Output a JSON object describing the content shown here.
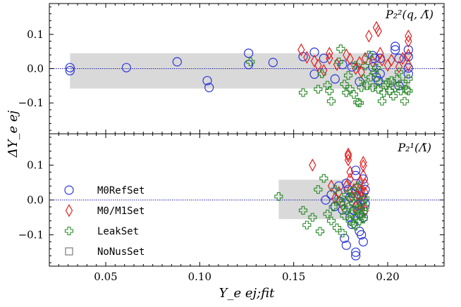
{
  "chart_data": [
    {
      "type": "scatter",
      "title": "P₂²(q, Λ̃)",
      "xlabel": "Y_e ej;fit",
      "ylabel": "ΔY_e ej",
      "xlim": [
        0.02,
        0.23
      ],
      "ylim": [
        -0.19,
        0.19
      ],
      "xticks": [
        "0.05",
        "0.10",
        "0.15",
        "0.20"
      ],
      "yticks": [
        "−0.1",
        "0.0",
        "0.1"
      ],
      "band": {
        "x": [
          0.031,
          0.212
        ],
        "y": [
          -0.058,
          0.045
        ]
      },
      "reference_line_y": 0.0,
      "series": [
        {
          "name": "M0RefSet",
          "marker": "circle",
          "color": "#2b35d9",
          "points": [
            [
              0.031,
              0.003
            ],
            [
              0.031,
              -0.006
            ],
            [
              0.061,
              0.003
            ],
            [
              0.088,
              0.02
            ],
            [
              0.104,
              -0.035
            ],
            [
              0.105,
              -0.055
            ],
            [
              0.126,
              0.045
            ],
            [
              0.126,
              0.012
            ],
            [
              0.139,
              0.018
            ],
            [
              0.155,
              0.035
            ],
            [
              0.161,
              0.048
            ],
            [
              0.161,
              -0.016
            ],
            [
              0.166,
              0.03
            ],
            [
              0.172,
              -0.03
            ],
            [
              0.176,
              0.012
            ],
            [
              0.181,
              0.005
            ],
            [
              0.185,
              -0.038
            ],
            [
              0.192,
              0.005
            ],
            [
              0.192,
              0.038
            ],
            [
              0.193,
              0.03
            ],
            [
              0.194,
              -0.025
            ],
            [
              0.195,
              -0.035
            ],
            [
              0.196,
              0.03
            ],
            [
              0.196,
              -0.015
            ],
            [
              0.204,
              0.065
            ],
            [
              0.204,
              0.055
            ],
            [
              0.206,
              0.03
            ],
            [
              0.206,
              -0.05
            ],
            [
              0.211,
              0.055
            ],
            [
              0.211,
              0.035
            ],
            [
              0.211,
              0.002
            ],
            [
              0.211,
              -0.015
            ]
          ]
        },
        {
          "name": "M0/M1Set",
          "marker": "diamond",
          "color": "#e02020",
          "points": [
            [
              0.154,
              0.055
            ],
            [
              0.157,
              0.033
            ],
            [
              0.161,
              0.022
            ],
            [
              0.163,
              0.01
            ],
            [
              0.166,
              -0.005
            ],
            [
              0.169,
              0.045
            ],
            [
              0.169,
              0.03
            ],
            [
              0.173,
              0.012
            ],
            [
              0.178,
              0.04
            ],
            [
              0.18,
              0.028
            ],
            [
              0.183,
              0.0
            ],
            [
              0.185,
              0.018
            ],
            [
              0.186,
              -0.01
            ],
            [
              0.188,
              0.03
            ],
            [
              0.19,
              0.095
            ],
            [
              0.192,
              0.02
            ],
            [
              0.194,
              0.12
            ],
            [
              0.195,
              0.11
            ],
            [
              0.196,
              0.045
            ],
            [
              0.197,
              0.025
            ],
            [
              0.2,
              0.01
            ],
            [
              0.202,
              0.025
            ],
            [
              0.206,
              0.005
            ],
            [
              0.208,
              0.03
            ],
            [
              0.211,
              0.095
            ],
            [
              0.211,
              0.08
            ],
            [
              0.211,
              0.04
            ],
            [
              0.211,
              0.01
            ]
          ]
        },
        {
          "name": "LeakSet",
          "marker": "plus",
          "color": "#2a8a2a",
          "points": [
            [
              0.127,
              0.02
            ],
            [
              0.155,
              -0.07
            ],
            [
              0.163,
              -0.06
            ],
            [
              0.165,
              -0.015
            ],
            [
              0.168,
              -0.048
            ],
            [
              0.169,
              -0.065
            ],
            [
              0.17,
              -0.095
            ],
            [
              0.174,
              0.02
            ],
            [
              0.175,
              0.058
            ],
            [
              0.177,
              -0.045
            ],
            [
              0.178,
              -0.07
            ],
            [
              0.179,
              -0.02
            ],
            [
              0.18,
              -0.06
            ],
            [
              0.182,
              -0.075
            ],
            [
              0.183,
              0.01
            ],
            [
              0.184,
              -0.098
            ],
            [
              0.185,
              -0.1
            ],
            [
              0.186,
              -0.055
            ],
            [
              0.187,
              -0.03
            ],
            [
              0.188,
              0.008
            ],
            [
              0.189,
              -0.05
            ],
            [
              0.19,
              0.04
            ],
            [
              0.191,
              -0.025
            ],
            [
              0.192,
              -0.055
            ],
            [
              0.193,
              -0.012
            ],
            [
              0.194,
              0.002
            ],
            [
              0.195,
              -0.06
            ],
            [
              0.196,
              -0.04
            ],
            [
              0.197,
              -0.095
            ],
            [
              0.198,
              -0.07
            ],
            [
              0.199,
              -0.048
            ],
            [
              0.2,
              -0.04
            ],
            [
              0.201,
              -0.065
            ],
            [
              0.202,
              -0.035
            ],
            [
              0.203,
              -0.08
            ],
            [
              0.204,
              -0.055
            ],
            [
              0.205,
              -0.03
            ],
            [
              0.206,
              -0.01
            ],
            [
              0.207,
              -0.065
            ],
            [
              0.208,
              -0.045
            ],
            [
              0.209,
              -0.095
            ],
            [
              0.21,
              -0.062
            ],
            [
              0.211,
              -0.065
            ],
            [
              0.211,
              -0.03
            ]
          ]
        }
      ]
    },
    {
      "type": "scatter",
      "title": "P₂¹(Λ̃)",
      "xlabel": "Y_e ej;fit",
      "ylabel": "ΔY_e ej",
      "xlim": [
        0.02,
        0.23
      ],
      "ylim": [
        -0.19,
        0.19
      ],
      "xticks": [
        "0.05",
        "0.10",
        "0.15",
        "0.20"
      ],
      "yticks": [
        "−0.1",
        "0.0",
        "0.1"
      ],
      "band": {
        "x": [
          0.142,
          0.188
        ],
        "y": [
          -0.055,
          0.058
        ]
      },
      "reference_line_y": 0.0,
      "series": [
        {
          "name": "M0RefSet",
          "marker": "circle",
          "color": "#2b35d9",
          "points": [
            [
              0.167,
              0.0
            ],
            [
              0.17,
              0.015
            ],
            [
              0.172,
              -0.018
            ],
            [
              0.174,
              0.04
            ],
            [
              0.175,
              -0.005
            ],
            [
              0.176,
              -0.028
            ],
            [
              0.177,
              -0.11
            ],
            [
              0.178,
              -0.13
            ],
            [
              0.178,
              0.048
            ],
            [
              0.179,
              0.03
            ],
            [
              0.18,
              0.008
            ],
            [
              0.18,
              -0.05
            ],
            [
              0.181,
              -0.07
            ],
            [
              0.181,
              0.02
            ],
            [
              0.182,
              -0.03
            ],
            [
              0.183,
              0.085
            ],
            [
              0.183,
              0.07
            ],
            [
              0.183,
              -0.15
            ],
            [
              0.183,
              -0.16
            ],
            [
              0.184,
              0.035
            ],
            [
              0.184,
              -0.015
            ],
            [
              0.185,
              -0.04
            ],
            [
              0.185,
              -0.09
            ],
            [
              0.186,
              -0.1
            ],
            [
              0.186,
              0.01
            ],
            [
              0.187,
              -0.12
            ],
            [
              0.187,
              0.06
            ],
            [
              0.187,
              0.0
            ],
            [
              0.187,
              -0.05
            ],
            [
              0.188,
              0.03
            ],
            [
              0.188,
              -0.01
            ]
          ]
        },
        {
          "name": "M0/M1Set",
          "marker": "diamond",
          "color": "#e02020",
          "points": [
            [
              0.16,
              0.1
            ],
            [
              0.17,
              0.04
            ],
            [
              0.172,
              0.005
            ],
            [
              0.174,
              0.022
            ],
            [
              0.176,
              -0.015
            ],
            [
              0.178,
              0.04
            ],
            [
              0.179,
              0.132
            ],
            [
              0.179,
              0.126
            ],
            [
              0.179,
              0.115
            ],
            [
              0.18,
              0.08
            ],
            [
              0.18,
              0.06
            ],
            [
              0.181,
              0.01
            ],
            [
              0.182,
              0.03
            ],
            [
              0.183,
              -0.02
            ],
            [
              0.184,
              0.015
            ],
            [
              0.185,
              0.05
            ],
            [
              0.185,
              0.03
            ],
            [
              0.186,
              0.025
            ],
            [
              0.186,
              -0.01
            ],
            [
              0.187,
              0.108
            ],
            [
              0.187,
              0.098
            ],
            [
              0.187,
              0.07
            ],
            [
              0.188,
              0.045
            ],
            [
              0.188,
              0.02
            ],
            [
              0.188,
              -0.03
            ]
          ]
        },
        {
          "name": "LeakSet",
          "marker": "plus",
          "color": "#2a8a2a",
          "points": [
            [
              0.142,
              0.01
            ],
            [
              0.155,
              -0.03
            ],
            [
              0.157,
              -0.072
            ],
            [
              0.16,
              -0.05
            ],
            [
              0.163,
              0.03
            ],
            [
              0.164,
              -0.09
            ],
            [
              0.166,
              0.062
            ],
            [
              0.168,
              -0.04
            ],
            [
              0.17,
              -0.06
            ],
            [
              0.171,
              -0.02
            ],
            [
              0.172,
              0.03
            ],
            [
              0.173,
              -0.08
            ],
            [
              0.174,
              0.0
            ],
            [
              0.175,
              -0.01
            ],
            [
              0.176,
              -0.095
            ],
            [
              0.177,
              -0.045
            ],
            [
              0.178,
              -0.03
            ],
            [
              0.178,
              0.015
            ],
            [
              0.179,
              -0.02
            ],
            [
              0.18,
              0.005
            ],
            [
              0.18,
              -0.06
            ],
            [
              0.181,
              -0.04
            ],
            [
              0.181,
              0.025
            ],
            [
              0.182,
              -0.07
            ],
            [
              0.182,
              -0.01
            ],
            [
              0.183,
              -0.05
            ],
            [
              0.183,
              -0.075
            ],
            [
              0.183,
              0.01
            ],
            [
              0.184,
              -0.03
            ],
            [
              0.184,
              0.04
            ],
            [
              0.185,
              -0.025
            ],
            [
              0.185,
              -0.06
            ],
            [
              0.186,
              -0.045
            ],
            [
              0.186,
              -0.005
            ],
            [
              0.187,
              -0.035
            ],
            [
              0.187,
              -0.055
            ],
            [
              0.188,
              -0.02
            ],
            [
              0.188,
              0.005
            ]
          ]
        }
      ]
    }
  ],
  "legend": {
    "placement": "lower-left of bottom panel",
    "entries": [
      {
        "label": "M0RefSet",
        "marker": "circle",
        "color": "#2b35d9"
      },
      {
        "label": "M0/M1Set",
        "marker": "diamond",
        "color": "#e02020"
      },
      {
        "label": "LeakSet",
        "marker": "plus",
        "color": "#2a8a2a"
      },
      {
        "label": "NoNusSet",
        "marker": "square",
        "color": "#7a7a7a"
      }
    ]
  }
}
